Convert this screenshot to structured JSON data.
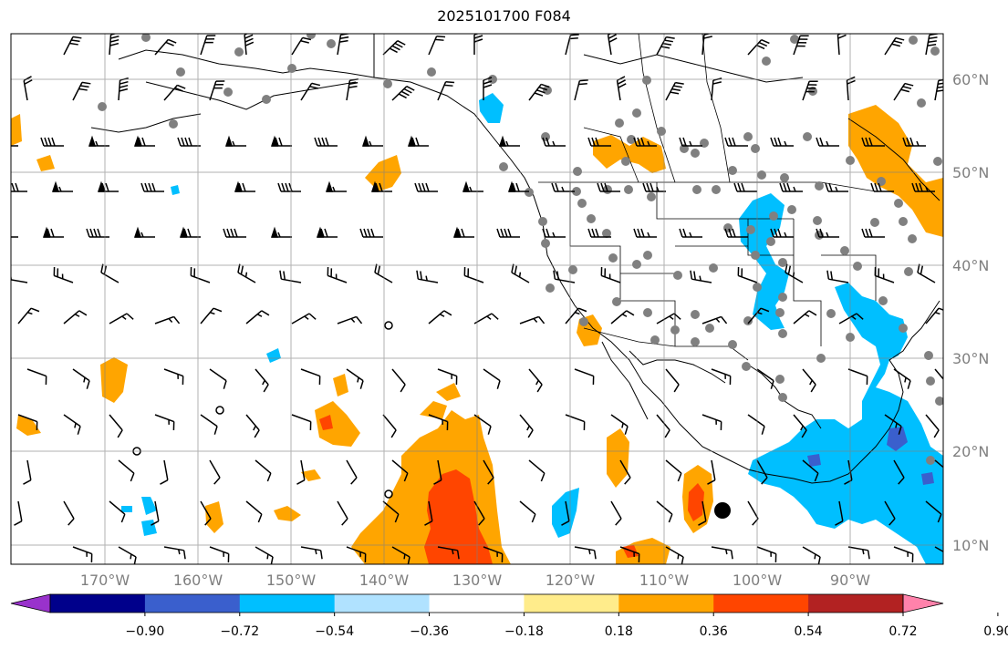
{
  "title": "2025101700 F084",
  "lon_axis": {
    "labels": [
      "170°W",
      "160°W",
      "150°W",
      "140°W",
      "130°W",
      "120°W",
      "110°W",
      "100°W",
      "90°W"
    ]
  },
  "lat_axis": {
    "labels": [
      "60°N",
      "50°N",
      "40°N",
      "30°N",
      "20°N",
      "10°N"
    ]
  },
  "colorbar": {
    "tick_labels": [
      "−0.90",
      "−0.72",
      "−0.54",
      "−0.36",
      "−0.18",
      "0.18",
      "0.36",
      "0.54",
      "0.72",
      "0.90"
    ],
    "colors": [
      "#9932cc",
      "#00008b",
      "#3a5fcd",
      "#00bfff",
      "#b0e2ff",
      "#ffffff",
      "#ffec8b",
      "#ffa500",
      "#ff4500",
      "#b22222",
      "#ff82ab"
    ],
    "extend": "both"
  },
  "chart_data": {
    "type": "map",
    "projection": "plate-carree",
    "lon_range": [
      -180,
      -80
    ],
    "lat_range": [
      8,
      65
    ],
    "grid": true,
    "field": "vertical velocity style anomaly (filled contours, orange positive, blue negative)",
    "overlays": [
      "wind barbs",
      "station dots (gray)",
      "coastlines",
      "state/province borders"
    ]
  }
}
